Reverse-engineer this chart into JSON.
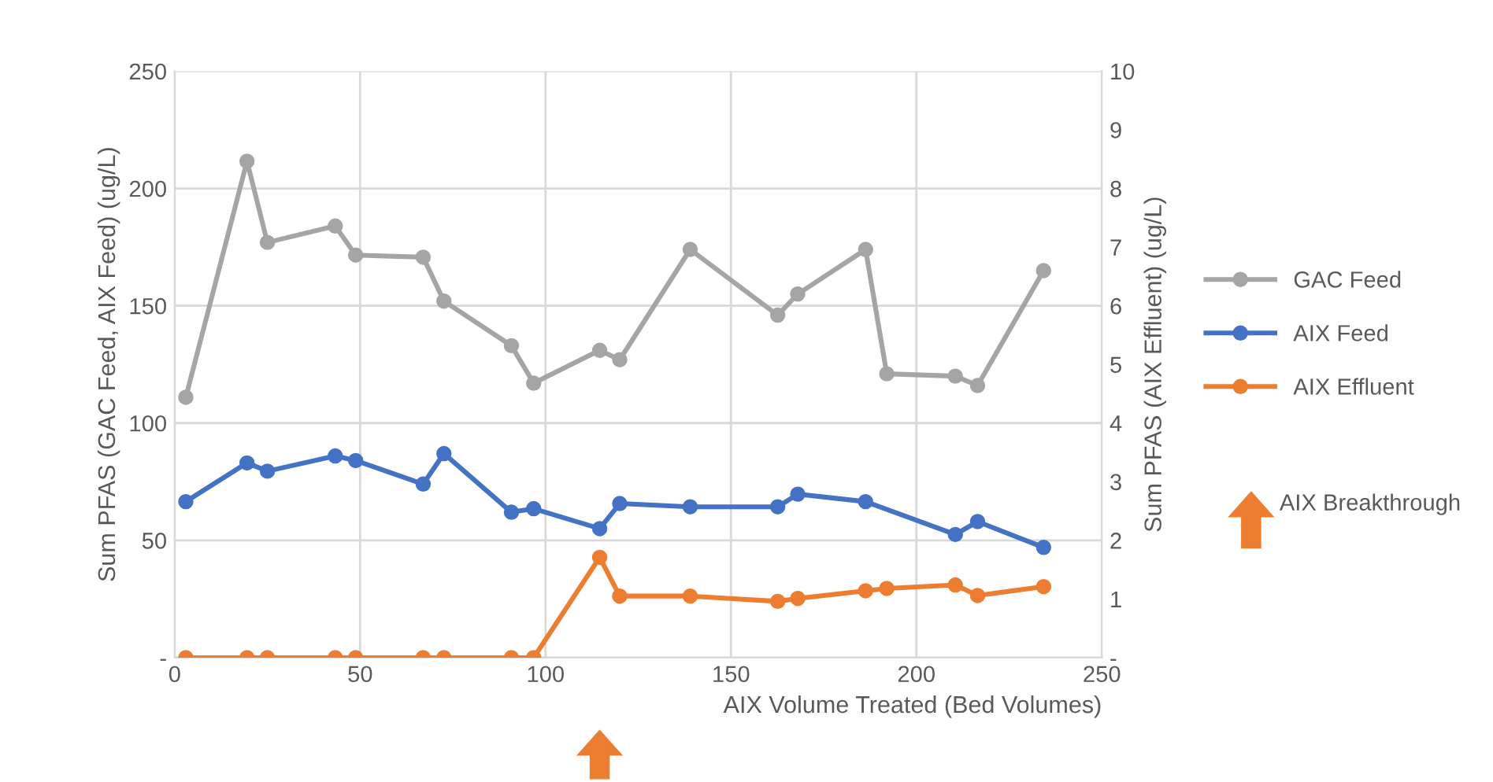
{
  "chart_data": {
    "type": "line",
    "xlabel": "AIX Volume Treated (Bed Volumes)",
    "ylabel": "Sum PFAS (GAC Feed, AIX Feed) (ug/L)",
    "y2label": "Sum PFAS (AIX Effluent) (ug/L)",
    "x": [
      3,
      19.5,
      25,
      43.3,
      48.8,
      67,
      72.6,
      90.8,
      96.8,
      114.6,
      120,
      139,
      162.6,
      168,
      186.3,
      192,
      210.5,
      216.5,
      234.3
    ],
    "series": [
      {
        "name": "GAC Feed",
        "color": "#a5a5a5",
        "values": [
          111,
          211.6,
          177,
          184,
          171.6,
          170.7,
          152,
          133,
          117,
          131,
          127,
          174,
          146,
          155,
          174,
          121,
          120,
          116,
          165
        ]
      },
      {
        "name": "AIX Feed",
        "color": "#4472c4",
        "x": [
          3,
          19.5,
          25,
          43.3,
          48.8,
          67,
          72.6,
          90.8,
          96.8,
          114.6,
          120,
          139,
          162.6,
          168,
          186.3,
          210.5,
          216.5,
          234.3
        ],
        "values": [
          66.5,
          83,
          79.5,
          86,
          84,
          74,
          87,
          62,
          63.5,
          55,
          65.7,
          64.3,
          64.3,
          69.7,
          66.5,
          52.5,
          58,
          47
        ]
      },
      {
        "name": "AIX Effluent",
        "color": "#ed7d31",
        "axis": "y2",
        "values": [
          0,
          0,
          0,
          0,
          0,
          0,
          0,
          0,
          0,
          1.71,
          1.05,
          1.05,
          0.96,
          1.01,
          1.14,
          1.18,
          1.24,
          1.06,
          1.21
        ]
      }
    ],
    "xlim": [
      0,
      250
    ],
    "xticks": [
      0,
      50,
      100,
      150,
      200,
      250
    ],
    "ylim": [
      0,
      250
    ],
    "yticks": [
      {
        "value": 0,
        "label": "-"
      },
      50,
      100,
      150,
      200,
      250
    ],
    "y2lim": [
      0,
      10
    ],
    "y2ticks": [
      {
        "value": 0,
        "label": "-"
      },
      1,
      2,
      3,
      4,
      5,
      6,
      7,
      8,
      9,
      10
    ],
    "annotations": [
      "AIX Breakthrough"
    ],
    "grid": true,
    "legend": "right",
    "marker": "circle",
    "line_style": "solid"
  }
}
